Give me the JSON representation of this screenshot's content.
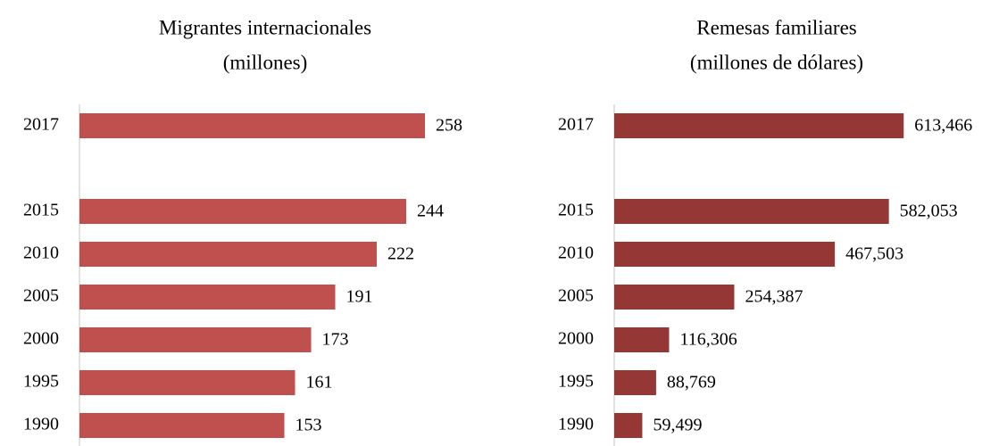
{
  "chart_data": [
    {
      "type": "bar",
      "orientation": "horizontal",
      "title": "Migrantes internacionales",
      "subtitle": "(millones)",
      "categories": [
        "2017",
        null,
        "2015",
        "2010",
        "2005",
        "2000",
        "1995",
        "1990"
      ],
      "values": [
        258,
        null,
        244,
        222,
        191,
        173,
        161,
        153
      ],
      "color": "#c0504d",
      "xlim": [
        0,
        300
      ]
    },
    {
      "type": "bar",
      "orientation": "horizontal",
      "title": "Remesas familiares",
      "subtitle": "(millones de dólares)",
      "categories": [
        "2017",
        null,
        "2015",
        "2010",
        "2005",
        "2000",
        "1995",
        "1990"
      ],
      "values": [
        613466,
        null,
        582053,
        467503,
        254387,
        116306,
        88769,
        59499
      ],
      "value_labels": [
        "613,466",
        null,
        "582,053",
        "467,503",
        "254,387",
        "116,306",
        "88,769",
        "59,499"
      ],
      "color": "#953735",
      "xlim": [
        0,
        700000
      ]
    }
  ]
}
